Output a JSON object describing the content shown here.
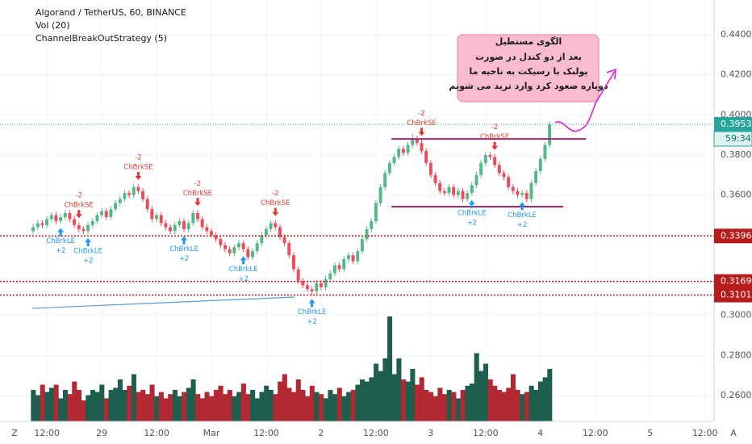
{
  "chart_data": {
    "type": "candlestick",
    "title": "Algorand / TetherUS, 60, BINANCE",
    "indicators": [
      "Vol (20)",
      "ChannelBreakOutStrategy (5)"
    ],
    "up_color": "#53b987",
    "down_color": "#eb4d5c",
    "volume_up_color": "#1e5e4e",
    "volume_down_color": "#b22833",
    "grid": true,
    "ylim": [
      0.2471,
      0.4573
    ],
    "yticks": [
      {
        "value": 0.44,
        "label": "0.4400"
      },
      {
        "value": 0.42,
        "label": "0.4200"
      },
      {
        "value": 0.4,
        "label": "0.4000"
      },
      {
        "value": 0.38,
        "label": "0.3800"
      },
      {
        "value": 0.36,
        "label": "0.3600"
      },
      {
        "value": 0.3,
        "label": "0.3000"
      },
      {
        "value": 0.28,
        "label": "0.2800"
      },
      {
        "value": 0.26,
        "label": "0.2600"
      }
    ],
    "xlim": [
      -0.2,
      149
    ],
    "xticks": [
      {
        "value": 3,
        "label": "12:00"
      },
      {
        "value": 15,
        "label": "29"
      },
      {
        "value": 27,
        "label": "12:00"
      },
      {
        "value": 39,
        "label": "Mar"
      },
      {
        "value": 51,
        "label": "12:00"
      },
      {
        "value": 63,
        "label": "2"
      },
      {
        "value": 75,
        "label": "12:00"
      },
      {
        "value": 87,
        "label": "3"
      },
      {
        "value": 99,
        "label": "12:00"
      },
      {
        "value": 111,
        "label": "4"
      },
      {
        "value": 123,
        "label": "12:00"
      },
      {
        "value": 135,
        "label": "5"
      },
      {
        "value": 147,
        "label": "12:00"
      }
    ],
    "open": [
      0.342,
      0.344,
      0.346,
      0.345,
      0.348,
      0.35,
      0.347,
      0.349,
      0.351,
      0.348,
      0.345,
      0.343,
      0.342,
      0.345,
      0.347,
      0.35,
      0.352,
      0.349,
      0.353,
      0.356,
      0.358,
      0.361,
      0.36,
      0.364,
      0.362,
      0.358,
      0.353,
      0.348,
      0.35,
      0.346,
      0.344,
      0.342,
      0.345,
      0.347,
      0.343,
      0.346,
      0.351,
      0.348,
      0.344,
      0.342,
      0.34,
      0.338,
      0.335,
      0.333,
      0.331,
      0.334,
      0.336,
      0.333,
      0.329,
      0.332,
      0.336,
      0.34,
      0.343,
      0.346,
      0.344,
      0.339,
      0.336,
      0.33,
      0.323,
      0.317,
      0.315,
      0.313,
      0.312,
      0.316,
      0.314,
      0.318,
      0.321,
      0.325,
      0.323,
      0.328,
      0.33,
      0.327,
      0.332,
      0.338,
      0.343,
      0.347,
      0.356,
      0.364,
      0.371,
      0.376,
      0.379,
      0.383,
      0.381,
      0.385,
      0.388,
      0.386,
      0.382,
      0.376,
      0.37,
      0.366,
      0.362,
      0.361,
      0.364,
      0.36,
      0.362,
      0.358,
      0.361,
      0.365,
      0.37,
      0.376,
      0.38,
      0.379,
      0.375,
      0.371,
      0.369,
      0.364,
      0.362,
      0.36,
      0.361,
      0.358,
      0.366,
      0.372,
      0.378,
      0.385
    ],
    "high": [
      0.3455,
      0.3475,
      0.3475,
      0.3495,
      0.3515,
      0.3515,
      0.3505,
      0.3525,
      0.3525,
      0.3495,
      0.3465,
      0.3445,
      0.3465,
      0.3485,
      0.3515,
      0.3535,
      0.3535,
      0.3545,
      0.3575,
      0.3595,
      0.3625,
      0.3625,
      0.3655,
      0.3655,
      0.3635,
      0.3595,
      0.3545,
      0.3515,
      0.3515,
      0.3475,
      0.3455,
      0.3465,
      0.3485,
      0.3485,
      0.3475,
      0.3525,
      0.3525,
      0.3495,
      0.3455,
      0.3435,
      0.3415,
      0.3395,
      0.3365,
      0.3345,
      0.3355,
      0.3375,
      0.3375,
      0.3345,
      0.3335,
      0.3375,
      0.3415,
      0.3445,
      0.3475,
      0.3475,
      0.3455,
      0.3405,
      0.3375,
      0.3315,
      0.3245,
      0.3185,
      0.3165,
      0.3145,
      0.3175,
      0.3175,
      0.3195,
      0.3225,
      0.3265,
      0.3265,
      0.3295,
      0.3315,
      0.3315,
      0.3335,
      0.3395,
      0.3445,
      0.3485,
      0.3575,
      0.3655,
      0.3725,
      0.3775,
      0.3805,
      0.3845,
      0.3845,
      0.3865,
      0.3905,
      0.3895,
      0.3875,
      0.3835,
      0.3775,
      0.3715,
      0.3675,
      0.3635,
      0.3655,
      0.3655,
      0.3635,
      0.3635,
      0.3625,
      0.3665,
      0.3715,
      0.3775,
      0.3815,
      0.3815,
      0.3805,
      0.3765,
      0.3725,
      0.3705,
      0.3655,
      0.3635,
      0.3625,
      0.3625,
      0.3675,
      0.3735,
      0.3795,
      0.3865,
      0.3968
    ],
    "low": [
      0.3405,
      0.3425,
      0.3435,
      0.3435,
      0.3465,
      0.3455,
      0.3455,
      0.3475,
      0.3465,
      0.3435,
      0.3415,
      0.3405,
      0.3405,
      0.3435,
      0.3455,
      0.3485,
      0.3475,
      0.3475,
      0.3515,
      0.3545,
      0.3565,
      0.3585,
      0.3585,
      0.3605,
      0.3565,
      0.3515,
      0.3465,
      0.3465,
      0.3445,
      0.3425,
      0.3405,
      0.3405,
      0.3435,
      0.3415,
      0.3415,
      0.3445,
      0.3465,
      0.3425,
      0.3405,
      0.3385,
      0.3365,
      0.3335,
      0.3315,
      0.3295,
      0.3295,
      0.3325,
      0.3315,
      0.3275,
      0.3275,
      0.3305,
      0.3345,
      0.3385,
      0.3415,
      0.3425,
      0.3375,
      0.3345,
      0.3285,
      0.3215,
      0.3155,
      0.3135,
      0.3115,
      0.3101,
      0.3105,
      0.3125,
      0.3125,
      0.3165,
      0.3195,
      0.3215,
      0.3215,
      0.3265,
      0.3255,
      0.3255,
      0.3305,
      0.3365,
      0.3415,
      0.3455,
      0.3545,
      0.3625,
      0.3695,
      0.3745,
      0.3775,
      0.3795,
      0.3795,
      0.3835,
      0.3845,
      0.3805,
      0.3745,
      0.3685,
      0.3645,
      0.3605,
      0.3595,
      0.3595,
      0.3585,
      0.3585,
      0.3565,
      0.3565,
      0.3595,
      0.3635,
      0.3685,
      0.3745,
      0.3775,
      0.3735,
      0.3695,
      0.3675,
      0.3625,
      0.3605,
      0.3585,
      0.3585,
      0.3565,
      0.3565,
      0.3645,
      0.3705,
      0.3765,
      0.3835
    ],
    "close": [
      0.344,
      0.346,
      0.345,
      0.348,
      0.35,
      0.347,
      0.349,
      0.351,
      0.348,
      0.345,
      0.343,
      0.342,
      0.345,
      0.347,
      0.35,
      0.352,
      0.349,
      0.353,
      0.356,
      0.358,
      0.361,
      0.36,
      0.364,
      0.362,
      0.358,
      0.353,
      0.348,
      0.35,
      0.346,
      0.344,
      0.342,
      0.345,
      0.347,
      0.343,
      0.346,
      0.351,
      0.348,
      0.344,
      0.342,
      0.34,
      0.338,
      0.335,
      0.333,
      0.331,
      0.334,
      0.336,
      0.333,
      0.329,
      0.332,
      0.336,
      0.34,
      0.343,
      0.346,
      0.344,
      0.339,
      0.336,
      0.33,
      0.323,
      0.317,
      0.315,
      0.313,
      0.312,
      0.316,
      0.314,
      0.318,
      0.321,
      0.325,
      0.323,
      0.328,
      0.33,
      0.327,
      0.332,
      0.338,
      0.343,
      0.347,
      0.356,
      0.364,
      0.371,
      0.376,
      0.379,
      0.383,
      0.381,
      0.385,
      0.388,
      0.386,
      0.382,
      0.376,
      0.37,
      0.366,
      0.362,
      0.361,
      0.364,
      0.36,
      0.362,
      0.358,
      0.361,
      0.365,
      0.37,
      0.376,
      0.38,
      0.379,
      0.375,
      0.371,
      0.369,
      0.364,
      0.362,
      0.36,
      0.361,
      0.358,
      0.366,
      0.372,
      0.378,
      0.385,
      0.3953
    ],
    "volume": [
      30,
      25,
      35,
      28,
      32,
      35,
      22,
      30,
      26,
      38,
      30,
      20,
      25,
      30,
      28,
      35,
      22,
      30,
      32,
      40,
      30,
      34,
      45,
      28,
      30,
      26,
      35,
      24,
      28,
      22,
      26,
      30,
      24,
      28,
      32,
      40,
      26,
      22,
      28,
      24,
      30,
      34,
      26,
      30,
      24,
      28,
      36,
      26,
      30,
      22,
      28,
      34,
      30,
      26,
      38,
      45,
      32,
      28,
      40,
      30,
      24,
      34,
      28,
      26,
      22,
      30,
      26,
      32,
      24,
      28,
      30,
      35,
      40,
      38,
      42,
      55,
      48,
      60,
      100,
      45,
      60,
      40,
      38,
      50,
      35,
      42,
      30,
      28,
      24,
      32,
      26,
      30,
      28,
      22,
      30,
      34,
      36,
      65,
      48,
      55,
      40,
      34,
      30,
      28,
      32,
      45,
      30,
      26,
      28,
      34,
      30,
      38,
      42,
      50
    ],
    "signals": [
      {
        "index": 6,
        "label": "ChBrkLE",
        "qty": "+2",
        "position": "below",
        "color": "#2196f3"
      },
      {
        "index": 10,
        "label": "ChBrkSE",
        "qty": "-2",
        "position": "above",
        "color": "#e53935"
      },
      {
        "index": 12,
        "label": "ChBrkLE",
        "qty": "+2",
        "position": "below",
        "color": "#2196f3"
      },
      {
        "index": 23,
        "label": "ChBrkSE",
        "qty": "-2",
        "position": "above",
        "color": "#e53935"
      },
      {
        "index": 33,
        "label": "ChBrkLE",
        "qty": "+2",
        "position": "below",
        "color": "#2196f3"
      },
      {
        "index": 36,
        "label": "ChBrkSE",
        "qty": "-2",
        "position": "above",
        "color": "#e53935"
      },
      {
        "index": 46,
        "label": "ChBrkLE",
        "qty": "+2",
        "position": "below",
        "color": "#2196f3"
      },
      {
        "index": 53,
        "label": "ChBrkSE",
        "qty": "-2",
        "position": "above",
        "color": "#e53935"
      },
      {
        "index": 61,
        "label": "ChBrkLE",
        "qty": "+2",
        "position": "below",
        "color": "#2196f3"
      },
      {
        "index": 85,
        "label": "ChBrkSE",
        "qty": "-2",
        "position": "above",
        "color": "#e53935"
      },
      {
        "index": 96,
        "label": "ChBrkLE",
        "qty": "+2",
        "position": "below",
        "color": "#2196f3"
      },
      {
        "index": 101,
        "label": "ChBrkSE",
        "qty": "-2",
        "position": "above",
        "color": "#e53935"
      },
      {
        "index": 107,
        "label": "ChBrkLE",
        "qty": "+2",
        "position": "below",
        "color": "#2196f3"
      }
    ],
    "price_lines": [
      {
        "value": 0.3396,
        "color": "#b71c1c"
      },
      {
        "value": 0.3169,
        "color": "#b71c1c"
      },
      {
        "value": 0.3101,
        "color": "#b71c1c"
      }
    ],
    "last_price_color": "#26a69a",
    "countdown": "59:34",
    "levels": [
      {
        "value": 0.388,
        "from": 78.4,
        "to": 121,
        "color": "#9c2b6e"
      },
      {
        "value": 0.3542,
        "from": 78.4,
        "to": 116,
        "color": "#9c2b6e"
      }
    ],
    "trendline": {
      "x": [
        -0.2,
        57.2
      ],
      "values": [
        0.3035,
        0.3091
      ],
      "color": "#5b9bd5"
    },
    "annotation": {
      "lines": [
        "الگوی مستطیل",
        "بعد از دو کندل در صورت",
        "پولبک  با رسیکت به ناحیه ما",
        "دوباره صعود کرد وارد ترید می شویم"
      ]
    }
  }
}
